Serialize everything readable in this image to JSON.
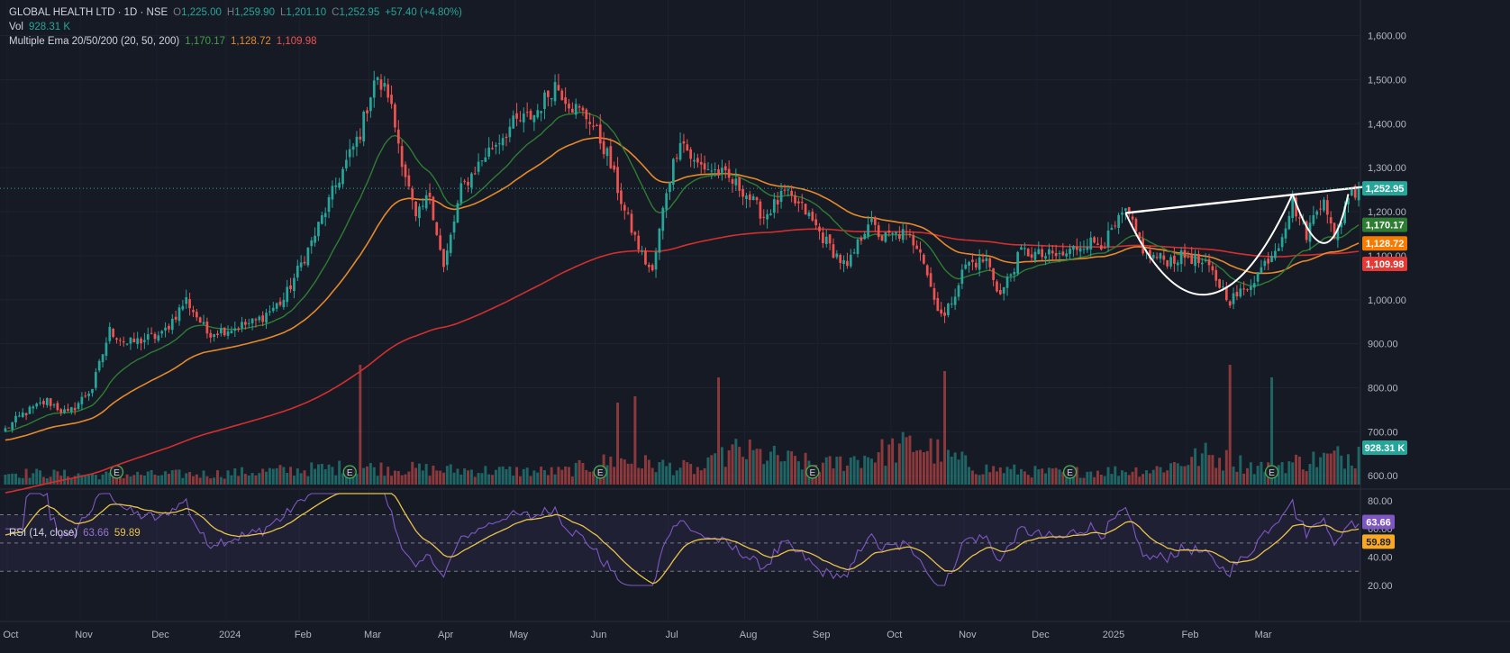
{
  "header": {
    "symbol_line": "GLOBAL HEALTH LTD · 1D · NSE",
    "open_label": "O",
    "open": "1,225.00",
    "high_label": "H",
    "high": "1,259.90",
    "low_label": "L",
    "low": "1,201.10",
    "close_label": "C",
    "close": "1,252.95",
    "change": "+57.40 (+4.80%)",
    "vol_label": "Vol",
    "vol": "928.31 K",
    "ema_label": "Multiple Ema 20/50/200 (20, 50, 200)",
    "ema20": "1,170.17",
    "ema50": "1,128.72",
    "ema200": "1,109.98"
  },
  "rsi_header": {
    "label": "RSI (14, close)",
    "rsi": "63.66",
    "ma": "59.89"
  },
  "colors": {
    "background": "#161a25",
    "up": "#26a69a",
    "down": "#ef5350",
    "ema20": "#2e7d32",
    "ema50": "#e6892b",
    "ema200": "#d32f2f",
    "rsi": "#7e57c2",
    "rsi_ma": "#e8c34a",
    "pattern": "#ffffff"
  },
  "price_axis": {
    "ticks": [
      "1,600.00",
      "1,500.00",
      "1,400.00",
      "1,300.00",
      "1,200.00",
      "1,100.00",
      "1,000.00",
      "900.00",
      "800.00",
      "700.00",
      "600.00"
    ]
  },
  "rsi_axis": {
    "ticks": [
      "80.00",
      "60.00",
      "40.00",
      "20.00"
    ]
  },
  "price_badges": {
    "last": "1,252.95",
    "ema20": "1,170.17",
    "ema50": "1,128.72",
    "ema200": "1,109.98",
    "volume": "928.31 K"
  },
  "rsi_badges": {
    "rsi": "63.66",
    "ma": "59.89"
  },
  "time_axis": {
    "labels": [
      "Oct",
      "Nov",
      "Dec",
      "2024",
      "Feb",
      "Mar",
      "Apr",
      "May",
      "Jun",
      "Jul",
      "Aug",
      "Sep",
      "Oct",
      "Nov",
      "Dec",
      "2025",
      "Feb",
      "Mar"
    ]
  },
  "earnings_marker": "E",
  "chart_data": {
    "type": "candlestick",
    "ylim": [
      580,
      1640
    ],
    "rsi_ylim": [
      20,
      85
    ],
    "rsi_bands": [
      70,
      50,
      30
    ],
    "anchors": [
      [
        0,
        705
      ],
      [
        5,
        740
      ],
      [
        12,
        770
      ],
      [
        18,
        740
      ],
      [
        25,
        800
      ],
      [
        30,
        930
      ],
      [
        35,
        900
      ],
      [
        45,
        920
      ],
      [
        52,
        1000
      ],
      [
        58,
        925
      ],
      [
        65,
        935
      ],
      [
        72,
        950
      ],
      [
        80,
        1000
      ],
      [
        88,
        1130
      ],
      [
        95,
        1260
      ],
      [
        102,
        1380
      ],
      [
        106,
        1500
      ],
      [
        110,
        1470
      ],
      [
        114,
        1320
      ],
      [
        118,
        1180
      ],
      [
        122,
        1240
      ],
      [
        126,
        1070
      ],
      [
        131,
        1250
      ],
      [
        138,
        1330
      ],
      [
        146,
        1400
      ],
      [
        152,
        1420
      ],
      [
        158,
        1490
      ],
      [
        163,
        1440
      ],
      [
        168,
        1410
      ],
      [
        173,
        1330
      ],
      [
        178,
        1200
      ],
      [
        183,
        1100
      ],
      [
        186,
        1060
      ],
      [
        190,
        1250
      ],
      [
        194,
        1370
      ],
      [
        198,
        1310
      ],
      [
        205,
        1290
      ],
      [
        212,
        1250
      ],
      [
        218,
        1190
      ],
      [
        224,
        1240
      ],
      [
        230,
        1200
      ],
      [
        236,
        1130
      ],
      [
        242,
        1070
      ],
      [
        248,
        1180
      ],
      [
        252,
        1140
      ],
      [
        258,
        1150
      ],
      [
        263,
        1120
      ],
      [
        267,
        1000
      ],
      [
        270,
        960
      ],
      [
        276,
        1080
      ],
      [
        282,
        1090
      ],
      [
        286,
        1010
      ],
      [
        292,
        1110
      ],
      [
        298,
        1100
      ],
      [
        304,
        1100
      ],
      [
        310,
        1130
      ],
      [
        316,
        1130
      ],
      [
        322,
        1200
      ],
      [
        328,
        1100
      ],
      [
        334,
        1090
      ],
      [
        340,
        1100
      ],
      [
        346,
        1070
      ],
      [
        352,
        1000
      ],
      [
        356,
        1020
      ],
      [
        360,
        1060
      ],
      [
        366,
        1130
      ],
      [
        370,
        1220
      ],
      [
        374,
        1150
      ],
      [
        379,
        1240
      ],
      [
        382,
        1130
      ],
      [
        386,
        1240
      ],
      [
        389,
        1253
      ]
    ],
    "volume_anchors": [
      [
        0,
        90
      ],
      [
        25,
        70
      ],
      [
        60,
        80
      ],
      [
        100,
        130
      ],
      [
        125,
        110
      ],
      [
        160,
        95
      ],
      [
        175,
        180
      ],
      [
        200,
        110
      ],
      [
        210,
        250
      ],
      [
        235,
        140
      ],
      [
        262,
        300
      ],
      [
        280,
        120
      ],
      [
        300,
        90
      ],
      [
        330,
        110
      ],
      [
        345,
        220
      ],
      [
        360,
        130
      ],
      [
        389,
        230
      ]
    ],
    "bars": 390,
    "last_close": 1252.95,
    "ema20_last": 1170.17,
    "ema50_last": 1128.72,
    "ema200_last": 1109.98,
    "volume_last": "928.31 K",
    "volume_spikes": [
      [
        102,
        1.9
      ],
      [
        205,
        1.7
      ],
      [
        270,
        1.8
      ],
      [
        352,
        1.9
      ],
      [
        364,
        1.7
      ],
      [
        176,
        1.3
      ],
      [
        181,
        1.4
      ]
    ],
    "earnings_bars": [
      32,
      99,
      171,
      232,
      306,
      364
    ],
    "rsi_last": 63.66,
    "rsi_ma_last": 59.89,
    "pattern": {
      "name": "cup and handle",
      "rim_line": [
        [
          322,
          1197
        ],
        [
          389,
          1253
        ]
      ],
      "cup": [
        [
          322,
          1197
        ],
        [
          345,
          1000
        ],
        [
          370,
          1240
        ]
      ],
      "handle": [
        [
          370,
          1240
        ],
        [
          380,
          1130
        ],
        [
          386,
          1240
        ]
      ]
    }
  }
}
